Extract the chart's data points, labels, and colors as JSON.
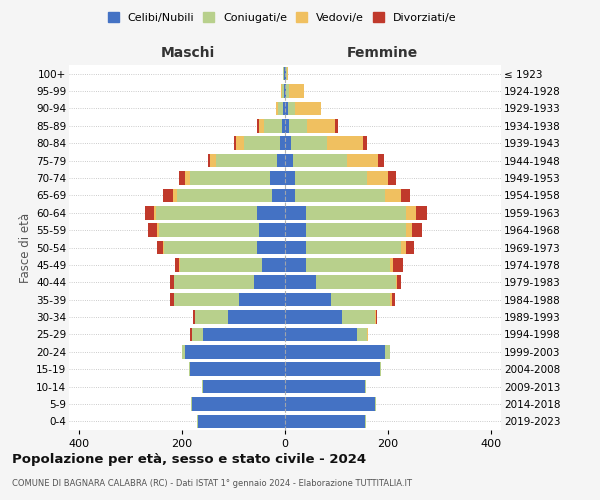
{
  "age_groups": [
    "0-4",
    "5-9",
    "10-14",
    "15-19",
    "20-24",
    "25-29",
    "30-34",
    "35-39",
    "40-44",
    "45-49",
    "50-54",
    "55-59",
    "60-64",
    "65-69",
    "70-74",
    "75-79",
    "80-84",
    "85-89",
    "90-94",
    "95-99",
    "100+"
  ],
  "birth_years": [
    "2019-2023",
    "2014-2018",
    "2009-2013",
    "2004-2008",
    "1999-2003",
    "1994-1998",
    "1989-1993",
    "1984-1988",
    "1979-1983",
    "1974-1978",
    "1969-1973",
    "1964-1968",
    "1959-1963",
    "1954-1958",
    "1949-1953",
    "1944-1948",
    "1939-1943",
    "1934-1938",
    "1929-1933",
    "1924-1928",
    "≤ 1923"
  ],
  "male": {
    "celibi": [
      170,
      180,
      160,
      185,
      195,
      160,
      110,
      90,
      60,
      45,
      55,
      50,
      55,
      25,
      30,
      15,
      10,
      5,
      3,
      2,
      2
    ],
    "coniugati": [
      2,
      2,
      2,
      2,
      5,
      20,
      65,
      125,
      155,
      160,
      180,
      195,
      195,
      185,
      155,
      120,
      70,
      35,
      10,
      3,
      1
    ],
    "vedovi": [
      0,
      0,
      0,
      0,
      0,
      0,
      0,
      1,
      1,
      1,
      2,
      3,
      5,
      8,
      10,
      10,
      15,
      10,
      5,
      2,
      0
    ],
    "divorziati": [
      0,
      0,
      0,
      0,
      1,
      5,
      4,
      8,
      8,
      8,
      12,
      18,
      18,
      20,
      12,
      5,
      5,
      5,
      0,
      0,
      0
    ]
  },
  "female": {
    "nubili": [
      155,
      175,
      155,
      185,
      195,
      140,
      110,
      90,
      60,
      40,
      40,
      40,
      40,
      20,
      20,
      15,
      12,
      8,
      5,
      2,
      2
    ],
    "coniugate": [
      2,
      2,
      2,
      2,
      10,
      20,
      65,
      115,
      155,
      165,
      185,
      195,
      195,
      175,
      140,
      105,
      70,
      35,
      15,
      5,
      1
    ],
    "vedove": [
      0,
      0,
      0,
      0,
      0,
      1,
      1,
      3,
      3,
      5,
      10,
      12,
      20,
      30,
      40,
      60,
      70,
      55,
      50,
      30,
      2
    ],
    "divorziate": [
      0,
      0,
      0,
      0,
      0,
      1,
      2,
      5,
      8,
      20,
      15,
      20,
      22,
      18,
      15,
      12,
      8,
      5,
      0,
      0,
      0
    ]
  },
  "colors": {
    "celibi": "#4472c4",
    "coniugati": "#b8d08c",
    "vedovi": "#f0c060",
    "divorziati": "#c0392b"
  },
  "title": "Popolazione per età, sesso e stato civile - 2024",
  "subtitle": "COMUNE DI BAGNARA CALABRA (RC) - Dati ISTAT 1° gennaio 2024 - Elaborazione TUTTITALIA.IT",
  "xlabel_left": "Maschi",
  "xlabel_right": "Femmine",
  "ylabel_left": "Fasce di età",
  "xlim": 420,
  "background_color": "#f5f5f5",
  "plot_bg_color": "#ffffff"
}
